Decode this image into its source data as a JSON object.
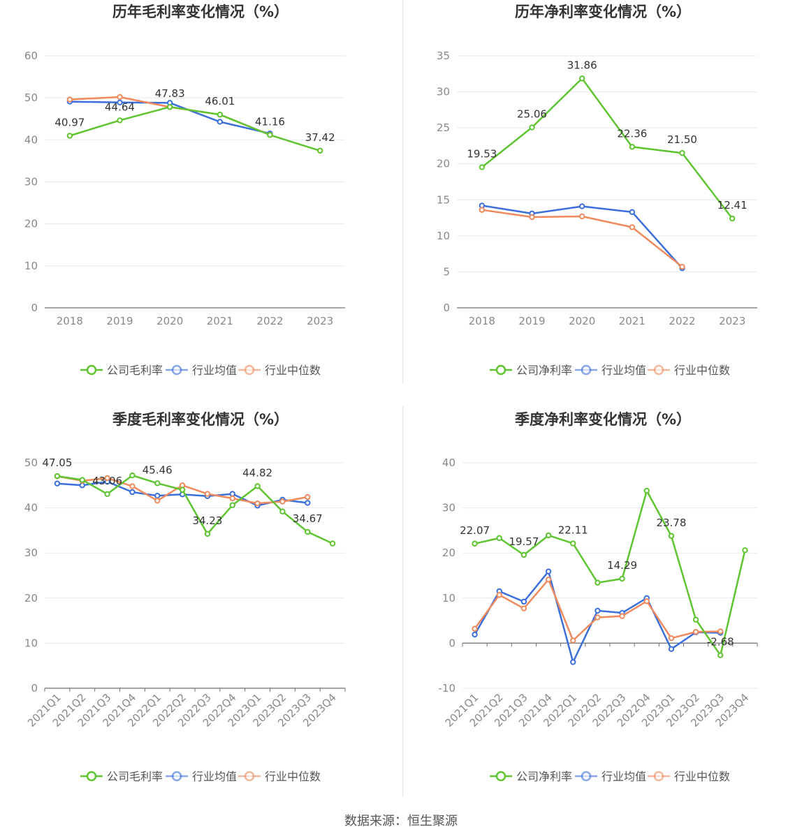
{
  "colors": {
    "company": "#5ec42f",
    "industry_avg": "#3a6fdc",
    "industry_median": "#f08a5d",
    "grid": "#e6e9f2",
    "axis": "#6e7079",
    "tick_label": "#888888",
    "value_label": "#333333",
    "title": "#333333"
  },
  "source": "数据来源：恒生聚源",
  "chart_data": [
    {
      "type": "line",
      "title": "历年毛利率变化情况（%）",
      "categories": [
        "2018",
        "2019",
        "2020",
        "2021",
        "2022",
        "2023"
      ],
      "ylim": [
        0,
        60
      ],
      "yticks": [
        0,
        10,
        20,
        30,
        40,
        50,
        60
      ],
      "legend": "bottom",
      "grid": true,
      "series": [
        {
          "name": "公司毛利率",
          "key": "company",
          "values": [
            40.97,
            44.64,
            47.83,
            46.01,
            41.16,
            37.42
          ],
          "labels": [
            "40.97",
            "44.64",
            "47.83",
            "46.01",
            "41.16",
            "37.42"
          ]
        },
        {
          "name": "行业均值",
          "key": "industry_avg",
          "values": [
            49.1,
            48.9,
            48.8,
            44.3,
            41.5,
            null
          ]
        },
        {
          "name": "行业中位数",
          "key": "industry_median",
          "values": [
            49.6,
            50.2,
            47.8,
            46.0,
            41.2,
            null
          ]
        }
      ]
    },
    {
      "type": "line",
      "title": "历年净利率变化情况（%）",
      "categories": [
        "2018",
        "2019",
        "2020",
        "2021",
        "2022",
        "2023"
      ],
      "ylim": [
        0,
        35
      ],
      "yticks": [
        0,
        5,
        10,
        15,
        20,
        25,
        30,
        35
      ],
      "legend": "bottom",
      "grid": true,
      "series": [
        {
          "name": "公司净利率",
          "key": "company",
          "values": [
            19.53,
            25.06,
            31.86,
            22.36,
            21.5,
            12.41
          ],
          "labels": [
            "19.53",
            "25.06",
            "31.86",
            "22.36",
            "21.50",
            "12.41"
          ]
        },
        {
          "name": "行业均值",
          "key": "industry_avg",
          "values": [
            14.2,
            13.1,
            14.1,
            13.3,
            5.5,
            null
          ]
        },
        {
          "name": "行业中位数",
          "key": "industry_median",
          "values": [
            13.6,
            12.6,
            12.7,
            11.2,
            5.7,
            null
          ]
        }
      ]
    },
    {
      "type": "line",
      "title": "季度毛利率变化情况（%）",
      "categories": [
        "2021Q1",
        "2021Q2",
        "2021Q3",
        "2021Q4",
        "2022Q1",
        "2022Q2",
        "2022Q3",
        "2022Q4",
        "2023Q1",
        "2023Q2",
        "2023Q3",
        "2023Q4"
      ],
      "ylim": [
        0,
        50
      ],
      "yticks": [
        0,
        10,
        20,
        30,
        40,
        50
      ],
      "rotate_x": true,
      "legend": "bottom",
      "grid": true,
      "series": [
        {
          "name": "公司毛利率",
          "key": "company",
          "values": [
            47.05,
            46.2,
            43.06,
            47.2,
            45.46,
            44.0,
            34.23,
            40.6,
            44.82,
            39.2,
            34.67,
            32.1
          ],
          "labels": [
            "47.05",
            "",
            "43.06",
            "",
            "45.46",
            "",
            "34.23",
            "",
            "44.82",
            "",
            "34.67",
            ""
          ]
        },
        {
          "name": "行业均值",
          "key": "industry_avg",
          "values": [
            45.4,
            45.0,
            45.8,
            43.5,
            42.7,
            43.0,
            42.6,
            43.1,
            40.5,
            41.8,
            41.1,
            null
          ]
        },
        {
          "name": "行业中位数",
          "key": "industry_median",
          "values": [
            47.0,
            46.0,
            46.6,
            44.8,
            41.6,
            45.0,
            43.1,
            42.1,
            41.0,
            41.4,
            42.4,
            null
          ]
        }
      ]
    },
    {
      "type": "line",
      "title": "季度净利率变化情况（%）",
      "categories": [
        "2021Q1",
        "2021Q2",
        "2021Q3",
        "2021Q4",
        "2022Q1",
        "2022Q2",
        "2022Q3",
        "2022Q4",
        "2023Q1",
        "2023Q2",
        "2023Q3",
        "2023Q4"
      ],
      "ylim": [
        -10,
        40
      ],
      "yticks": [
        -10,
        0,
        10,
        20,
        30,
        40
      ],
      "rotate_x": true,
      "legend": "bottom",
      "grid": true,
      "series": [
        {
          "name": "公司净利率",
          "key": "company",
          "values": [
            22.07,
            23.3,
            19.57,
            23.9,
            22.11,
            13.4,
            14.29,
            33.8,
            23.78,
            5.2,
            -2.68,
            20.6
          ],
          "labels": [
            "22.07",
            "",
            "19.57",
            "",
            "22.11",
            "",
            "14.29",
            "",
            "23.78",
            "",
            "-2.68",
            ""
          ]
        },
        {
          "name": "行业均值",
          "key": "industry_avg",
          "values": [
            1.9,
            11.5,
            9.2,
            15.9,
            -4.2,
            7.2,
            6.7,
            10.0,
            -1.3,
            2.4,
            2.3,
            null
          ]
        },
        {
          "name": "行业中位数",
          "key": "industry_median",
          "values": [
            3.2,
            10.7,
            7.7,
            14.1,
            0.6,
            5.7,
            6.0,
            9.3,
            1.1,
            2.5,
            2.6,
            null
          ]
        }
      ]
    }
  ]
}
